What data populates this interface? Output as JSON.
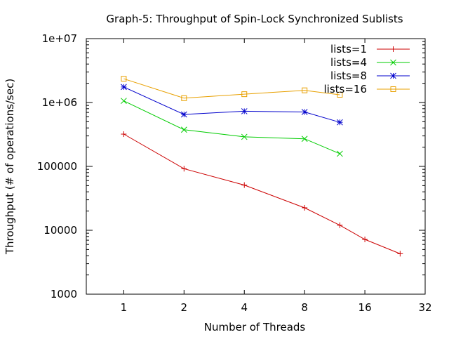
{
  "chart_data": {
    "type": "line",
    "title": "Graph-5: Throughput of Spin-Lock Synchronized Sublists",
    "xlabel": "Number of Threads",
    "ylabel": "Throughput (# of operations/sec)",
    "x_scale": "log2",
    "y_scale": "log10",
    "xlim": [
      0.65,
      32
    ],
    "ylim": [
      1000,
      10000000
    ],
    "x_ticks": [
      {
        "value": 1,
        "label": "1"
      },
      {
        "value": 2,
        "label": "2"
      },
      {
        "value": 4,
        "label": "4"
      },
      {
        "value": 8,
        "label": "8"
      },
      {
        "value": 16,
        "label": "16"
      },
      {
        "value": 32,
        "label": "32"
      }
    ],
    "y_ticks": [
      {
        "value": 1000,
        "label": "1000"
      },
      {
        "value": 10000,
        "label": "10000"
      },
      {
        "value": 100000,
        "label": "100000"
      },
      {
        "value": 1000000,
        "label": "1e+06"
      },
      {
        "value": 10000000,
        "label": "1e+07"
      }
    ],
    "legend_position": "top-right",
    "series": [
      {
        "name": "lists=1",
        "color": "#cc0000",
        "marker": "plus",
        "x": [
          1,
          2,
          4,
          8,
          12,
          16,
          24
        ],
        "values": [
          320000,
          92000,
          51000,
          22500,
          12000,
          7200,
          4300
        ]
      },
      {
        "name": "lists=4",
        "color": "#00cc00",
        "marker": "cross",
        "x": [
          1,
          2,
          4,
          8,
          12
        ],
        "values": [
          1060000,
          375000,
          290000,
          270000,
          158000
        ]
      },
      {
        "name": "lists=8",
        "color": "#0000cc",
        "marker": "star",
        "x": [
          1,
          2,
          4,
          8,
          12
        ],
        "values": [
          1750000,
          650000,
          730000,
          710000,
          490000
        ]
      },
      {
        "name": "lists=16",
        "color": "#e8a000",
        "marker": "square",
        "x": [
          1,
          2,
          4,
          8,
          12
        ],
        "values": [
          2350000,
          1170000,
          1350000,
          1550000,
          1320000
        ]
      }
    ]
  }
}
